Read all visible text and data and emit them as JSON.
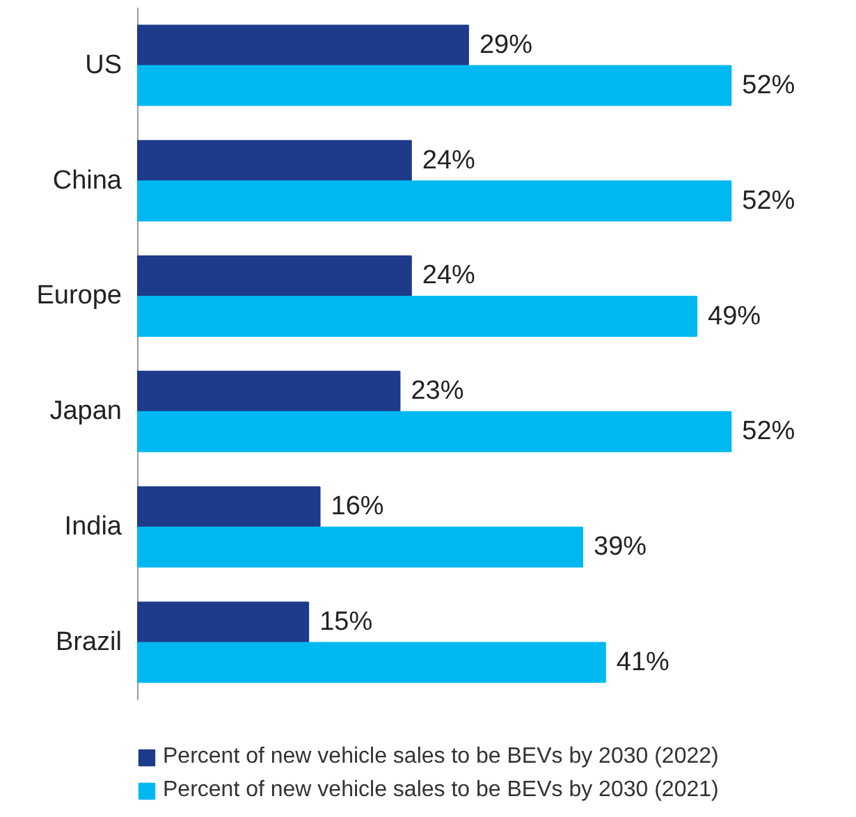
{
  "chart_data": {
    "type": "bar",
    "orientation": "horizontal",
    "categories": [
      "US",
      "China",
      "Europe",
      "Japan",
      "India",
      "Brazil"
    ],
    "series": [
      {
        "name": "Percent of new vehicle sales to be BEVs by 2030 (2022)",
        "color": "#1e3a8a",
        "values": [
          29,
          24,
          24,
          23,
          16,
          15
        ],
        "value_labels": [
          "29%",
          "24%",
          "24%",
          "23%",
          "16%",
          "15%"
        ]
      },
      {
        "name": "Percent of new vehicle sales to be BEVs by 2030 (2021)",
        "color": "#00b8f1",
        "values": [
          52,
          52,
          49,
          52,
          39,
          41
        ],
        "value_labels": [
          "52%",
          "52%",
          "49%",
          "52%",
          "39%",
          "41%"
        ]
      }
    ],
    "legend": "bottom"
  }
}
